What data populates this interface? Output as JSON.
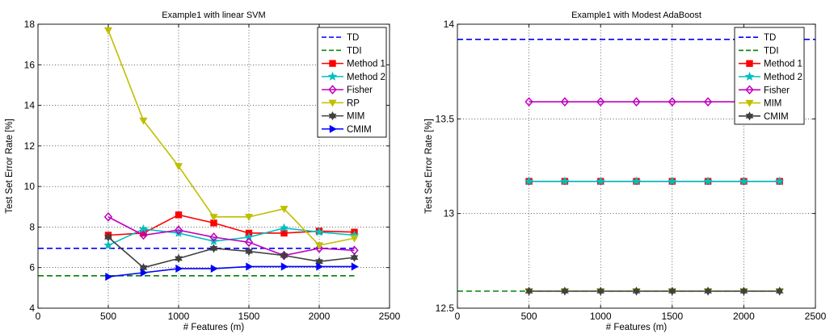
{
  "chart_data": [
    {
      "type": "line",
      "title": "Example1 with linear SVM",
      "xlabel": "# Features (m)",
      "ylabel": "Test Set Error Rate [%]",
      "xlim": [
        0,
        2500
      ],
      "ylim": [
        4,
        18
      ],
      "xticks": [
        0,
        500,
        1000,
        1500,
        2000,
        2500
      ],
      "yticks": [
        4,
        6,
        8,
        10,
        12,
        14,
        16,
        18
      ],
      "ytick_labels": [
        "4",
        "6",
        "8",
        "10",
        "12",
        "14",
        "16",
        "18"
      ],
      "grid": true,
      "legend_position": "top-right",
      "series": [
        {
          "name": "TD",
          "color": "#0000ff",
          "style": "dashed",
          "marker": "none",
          "x": [
            0,
            2250
          ],
          "y": [
            6.95,
            6.95
          ]
        },
        {
          "name": "TDI",
          "color": "#008000",
          "style": "dashed",
          "marker": "none",
          "x": [
            0,
            2250
          ],
          "y": [
            5.6,
            5.6
          ]
        },
        {
          "name": "Method 1",
          "color": "#ff0000",
          "style": "solid",
          "marker": "square",
          "x": [
            500,
            750,
            1000,
            1250,
            1500,
            1750,
            2000,
            2250
          ],
          "y": [
            7.6,
            7.7,
            8.6,
            8.2,
            7.7,
            7.7,
            7.8,
            7.75
          ]
        },
        {
          "name": "Method 2",
          "color": "#00bfbf",
          "style": "solid",
          "marker": "star",
          "x": [
            500,
            750,
            1000,
            1250,
            1500,
            1750,
            2000,
            2250
          ],
          "y": [
            7.1,
            7.9,
            7.7,
            7.3,
            7.5,
            7.95,
            7.75,
            7.6
          ]
        },
        {
          "name": "Fisher",
          "color": "#bf00bf",
          "style": "solid",
          "marker": "diamond",
          "x": [
            500,
            750,
            1000,
            1250,
            1500,
            1750,
            2000,
            2250
          ],
          "y": [
            8.5,
            7.6,
            7.85,
            7.5,
            7.25,
            6.6,
            6.95,
            6.85
          ]
        },
        {
          "name": "RP",
          "color": "#bfbf00",
          "style": "solid",
          "marker": "triangle-down",
          "x": [
            500,
            750,
            1000,
            1250,
            1500,
            1750,
            2000,
            2250
          ],
          "y": [
            17.7,
            13.25,
            11.0,
            8.5,
            8.5,
            8.9,
            7.1,
            7.45
          ]
        },
        {
          "name": "MIM",
          "color": "#404040",
          "style": "solid",
          "marker": "hexagram",
          "x": [
            500,
            750,
            1000,
            1250,
            1500,
            1750,
            2000,
            2250
          ],
          "y": [
            7.5,
            6.0,
            6.45,
            6.95,
            6.8,
            6.6,
            6.3,
            6.5
          ]
        },
        {
          "name": "CMIM",
          "color": "#0000ff",
          "style": "solid",
          "marker": "triangle-right",
          "x": [
            500,
            750,
            1000,
            1250,
            1500,
            1750,
            2000,
            2250
          ],
          "y": [
            5.55,
            5.75,
            5.95,
            5.95,
            6.05,
            6.05,
            6.05,
            6.05
          ]
        }
      ]
    },
    {
      "type": "line",
      "title": "Example1 with Modest AdaBoost",
      "xlabel": "# Features (m)",
      "ylabel": "Test Set Error Rate [%]",
      "xlim": [
        0,
        2500
      ],
      "ylim": [
        12.5,
        14
      ],
      "xticks": [
        0,
        500,
        1000,
        1500,
        2000,
        2500
      ],
      "yticks": [
        12.5,
        13,
        13.5,
        14
      ],
      "ytick_labels": [
        "12.5",
        "13",
        "13.5",
        "14"
      ],
      "grid": true,
      "legend_position": "top-right",
      "series": [
        {
          "name": "TD",
          "color": "#0000ff",
          "style": "dashed",
          "marker": "none",
          "x": [
            0,
            2500
          ],
          "y": [
            13.92,
            13.92
          ]
        },
        {
          "name": "TDI",
          "color": "#008000",
          "style": "dashed",
          "marker": "none",
          "x": [
            0,
            2250
          ],
          "y": [
            12.59,
            12.59
          ]
        },
        {
          "name": "Method 1",
          "color": "#ff0000",
          "style": "solid",
          "marker": "square",
          "x": [
            500,
            750,
            1000,
            1250,
            1500,
            1750,
            2000,
            2250
          ],
          "y": [
            13.17,
            13.17,
            13.17,
            13.17,
            13.17,
            13.17,
            13.17,
            13.17
          ]
        },
        {
          "name": "Method 2",
          "color": "#00bfbf",
          "style": "solid",
          "marker": "star",
          "x": [
            500,
            750,
            1000,
            1250,
            1500,
            1750,
            2000,
            2250
          ],
          "y": [
            13.17,
            13.17,
            13.17,
            13.17,
            13.17,
            13.17,
            13.17,
            13.17
          ]
        },
        {
          "name": "Fisher",
          "color": "#bf00bf",
          "style": "solid",
          "marker": "diamond",
          "x": [
            500,
            750,
            1000,
            1250,
            1500,
            1750,
            2000,
            2250
          ],
          "y": [
            13.59,
            13.59,
            13.59,
            13.59,
            13.59,
            13.59,
            13.59,
            13.59
          ]
        },
        {
          "name": "MIM",
          "color": "#bfbf00",
          "style": "solid",
          "marker": "triangle-down",
          "x": [
            500,
            750,
            1000,
            1250,
            1500,
            1750,
            2000,
            2250
          ],
          "y": [
            12.59,
            12.59,
            12.59,
            12.59,
            12.59,
            12.59,
            12.59,
            12.59
          ]
        },
        {
          "name": "CMIM",
          "color": "#404040",
          "style": "solid",
          "marker": "hexagram",
          "x": [
            500,
            750,
            1000,
            1250,
            1500,
            1750,
            2000,
            2250
          ],
          "y": [
            12.59,
            12.59,
            12.59,
            12.59,
            12.59,
            12.59,
            12.59,
            12.59
          ]
        }
      ]
    }
  ]
}
